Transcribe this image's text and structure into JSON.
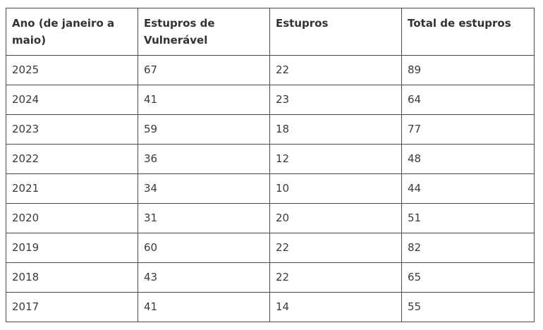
{
  "table": {
    "headers": [
      "Ano (de janeiro a maio)",
      "Estupros de Vulnerável",
      "Estupros",
      "Total de estupros"
    ],
    "rows": [
      [
        "2025",
        "67",
        "22",
        "89"
      ],
      [
        "2024",
        "41",
        "23",
        "64"
      ],
      [
        "2023",
        "59",
        "18",
        "77"
      ],
      [
        "2022",
        "36",
        "12",
        "48"
      ],
      [
        "2021",
        "34",
        "10",
        "44"
      ],
      [
        "2020",
        "31",
        "20",
        "51"
      ],
      [
        "2019",
        "60",
        "22",
        "82"
      ],
      [
        "2018",
        "43",
        "22",
        "65"
      ],
      [
        "2017",
        "41",
        "14",
        "55"
      ]
    ]
  }
}
